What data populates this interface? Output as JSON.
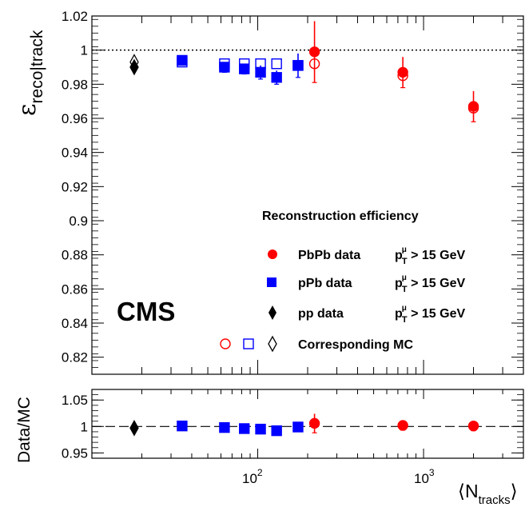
{
  "chart_data": [
    {
      "type": "scatter",
      "panel": "main",
      "title": "",
      "ylabel": "ε",
      "ylabel_subscript": "reco|track",
      "xlabel": "⟨N",
      "xlabel_subscript": "tracks",
      "xlabel_close": "⟩",
      "xscale": "log",
      "xlim": [
        10,
        4000
      ],
      "ylim": [
        0.81,
        1.02
      ],
      "yticks": [
        "0.82",
        "0.84",
        "0.86",
        "0.88",
        "0.9",
        "0.92",
        "0.94",
        "0.96",
        "0.98",
        "1",
        "1.02"
      ],
      "xticks": [
        {
          "base": "10",
          "exp": "2"
        },
        {
          "base": "10",
          "exp": "3"
        }
      ],
      "reference_line": 1.0,
      "experiment_label": "CMS",
      "legend": {
        "title": "Reconstruction efficiency",
        "placement": "right",
        "entries": [
          {
            "name": "PbPb data",
            "cut_p": "p",
            "cut_sup": "μ",
            "cut_sub": "T",
            "cut_rest": " > 15 GeV",
            "color": "#ff0000",
            "marker": "circle-filled"
          },
          {
            "name": "pPb data",
            "cut_p": "p",
            "cut_sup": "μ",
            "cut_sub": "T",
            "cut_rest": " > 15 GeV",
            "color": "#0000ff",
            "marker": "square-filled"
          },
          {
            "name": "pp data",
            "cut_p": "p",
            "cut_sup": "μ",
            "cut_sub": "T",
            "cut_rest": " > 15 GeV",
            "color": "#000000",
            "marker": "diamond-filled"
          },
          {
            "name": "Corresponding MC",
            "color": "#000000",
            "marker": "open-set"
          }
        ]
      },
      "series": [
        {
          "name": "PbPb data",
          "color": "#ff0000",
          "marker": "circle",
          "filled": true,
          "points": [
            {
              "x": 220,
              "y": 0.999,
              "err": 0.018
            },
            {
              "x": 750,
              "y": 0.987,
              "err": 0.009
            },
            {
              "x": 2000,
              "y": 0.967,
              "err": 0.009
            }
          ]
        },
        {
          "name": "PbPb MC",
          "color": "#ff0000",
          "marker": "circle",
          "filled": false,
          "points": [
            {
              "x": 220,
              "y": 0.992,
              "err": 0
            },
            {
              "x": 750,
              "y": 0.985,
              "err": 0
            },
            {
              "x": 2000,
              "y": 0.966,
              "err": 0
            }
          ]
        },
        {
          "name": "pPb data",
          "color": "#0000ff",
          "marker": "square",
          "filled": true,
          "points": [
            {
              "x": 35,
              "y": 0.994,
              "err": 0.001
            },
            {
              "x": 63,
              "y": 0.99,
              "err": 0.003
            },
            {
              "x": 83,
              "y": 0.989,
              "err": 0.003
            },
            {
              "x": 104,
              "y": 0.987,
              "err": 0.004
            },
            {
              "x": 130,
              "y": 0.984,
              "err": 0.004
            },
            {
              "x": 175,
              "y": 0.991,
              "err": 0.007
            }
          ]
        },
        {
          "name": "pPb MC",
          "color": "#0000ff",
          "marker": "square",
          "filled": false,
          "points": [
            {
              "x": 35,
              "y": 0.993,
              "err": 0
            },
            {
              "x": 63,
              "y": 0.992,
              "err": 0
            },
            {
              "x": 83,
              "y": 0.992,
              "err": 0
            },
            {
              "x": 104,
              "y": 0.992,
              "err": 0
            },
            {
              "x": 130,
              "y": 0.992,
              "err": 0
            },
            {
              "x": 175,
              "y": 0.991,
              "err": 0
            }
          ]
        },
        {
          "name": "pp data",
          "color": "#000000",
          "marker": "diamond",
          "filled": true,
          "points": [
            {
              "x": 18,
              "y": 0.99,
              "err": 0.001
            }
          ]
        },
        {
          "name": "pp MC",
          "color": "#000000",
          "marker": "diamond",
          "filled": false,
          "points": [
            {
              "x": 18,
              "y": 0.993,
              "err": 0
            }
          ]
        }
      ]
    },
    {
      "type": "scatter",
      "panel": "ratio",
      "ylabel": "Data/MC",
      "xscale": "log",
      "xlim": [
        10,
        4000
      ],
      "ylim": [
        0.94,
        1.07
      ],
      "yticks": [
        "0.95",
        "1",
        "1.05"
      ],
      "reference_line": 1.0,
      "series": [
        {
          "name": "pp",
          "color": "#000000",
          "marker": "diamond",
          "points": [
            {
              "x": 18,
              "y": 0.997,
              "err": 0.001
            }
          ]
        },
        {
          "name": "pPb",
          "color": "#0000ff",
          "marker": "square",
          "points": [
            {
              "x": 35,
              "y": 1.001,
              "err": 0.001
            },
            {
              "x": 63,
              "y": 0.998,
              "err": 0.003
            },
            {
              "x": 83,
              "y": 0.996,
              "err": 0.003
            },
            {
              "x": 104,
              "y": 0.995,
              "err": 0.004
            },
            {
              "x": 130,
              "y": 0.992,
              "err": 0.004
            },
            {
              "x": 175,
              "y": 0.999,
              "err": 0.007
            }
          ]
        },
        {
          "name": "PbPb",
          "color": "#ff0000",
          "marker": "circle",
          "points": [
            {
              "x": 220,
              "y": 1.006,
              "err": 0.018
            },
            {
              "x": 750,
              "y": 1.002,
              "err": 0.009
            },
            {
              "x": 2000,
              "y": 1.001,
              "err": 0.009
            }
          ]
        }
      ]
    }
  ]
}
